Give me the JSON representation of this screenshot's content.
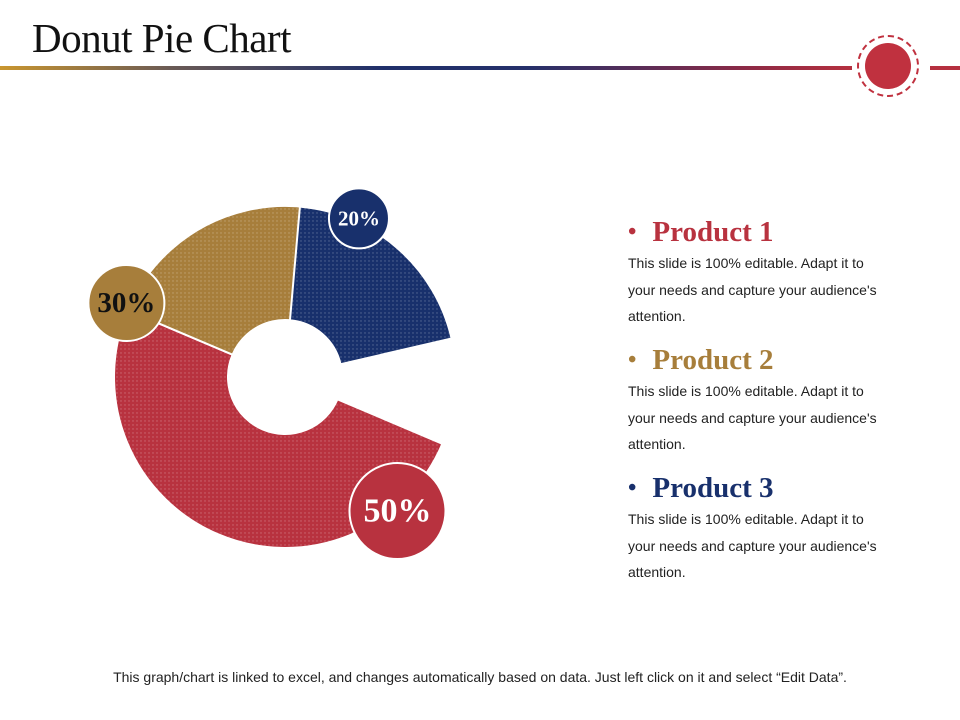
{
  "title": "Donut Pie Chart",
  "colors": {
    "product1": "#b8323f",
    "product2": "#a77e3b",
    "product3": "#18306c",
    "accent": "#c0313f"
  },
  "chart_data": {
    "type": "pie",
    "style": "donut",
    "title": "",
    "categories": [
      "Product 1",
      "Product 2",
      "Product 3"
    ],
    "values": [
      50,
      30,
      20
    ],
    "labels": [
      "50%",
      "30%",
      "20%"
    ],
    "unit": "%"
  },
  "legend": [
    {
      "bullet": "•",
      "title": "Product 1",
      "desc": "This slide is 100% editable.  Adapt it to your needs and capture your audience's attention."
    },
    {
      "bullet": "•",
      "title": "Product 2",
      "desc": "This slide is 100% editable.  Adapt it to your needs and capture your audience's attention."
    },
    {
      "bullet": "•",
      "title": "Product 3",
      "desc": "This slide is 100% editable.  Adapt it to your needs and capture your audience's attention."
    }
  ],
  "footnote": "This graph/chart is linked to excel, and changes automatically based on data. Just left click on it and select “Edit Data”."
}
